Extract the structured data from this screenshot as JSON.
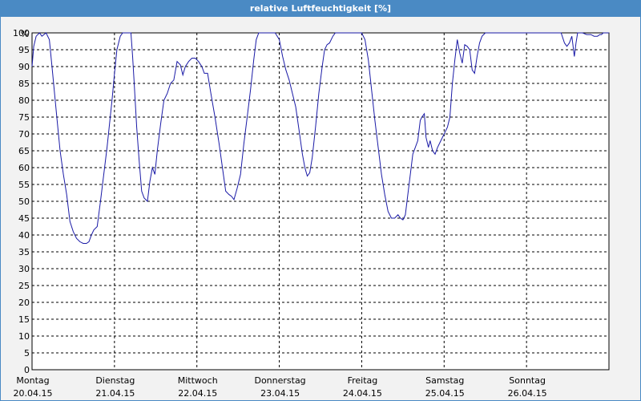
{
  "window": {
    "title": "relative Luftfeuchtigkeit [%]"
  },
  "colors": {
    "title_bar": "#4a8ac4",
    "line": "#1a1aa6",
    "grid": "#000000",
    "plot_bg": "#ffffff"
  },
  "chart_data": {
    "type": "line",
    "title": "relative Luftfeuchtigkeit [%]",
    "ylabel": "%",
    "ylim": [
      0,
      100
    ],
    "ystep": 5,
    "grid": true,
    "x_days": [
      {
        "day": "Montag",
        "date": "20.04.15"
      },
      {
        "day": "Dienstag",
        "date": "21.04.15"
      },
      {
        "day": "Mittwoch",
        "date": "22.04.15"
      },
      {
        "day": "Donnerstag",
        "date": "23.04.15"
      },
      {
        "day": "Freitag",
        "date": "24.04.15"
      },
      {
        "day": "Samstag",
        "date": "25.04.15"
      },
      {
        "day": "Sonntag",
        "date": "26.04.15"
      }
    ],
    "xlim_days": [
      0,
      7
    ],
    "series": [
      {
        "values": [
          [
            0.0,
            90
          ],
          [
            0.02,
            96
          ],
          [
            0.05,
            99
          ],
          [
            0.09,
            100
          ],
          [
            0.12,
            99
          ],
          [
            0.17,
            100
          ],
          [
            0.21,
            98
          ],
          [
            0.25,
            88
          ],
          [
            0.3,
            75
          ],
          [
            0.34,
            65
          ],
          [
            0.38,
            58
          ],
          [
            0.42,
            52
          ],
          [
            0.46,
            44
          ],
          [
            0.5,
            41
          ],
          [
            0.54,
            39
          ],
          [
            0.58,
            38
          ],
          [
            0.62,
            37.5
          ],
          [
            0.66,
            37.5
          ],
          [
            0.69,
            38
          ],
          [
            0.72,
            40
          ],
          [
            0.75,
            41.5
          ],
          [
            0.79,
            42.5
          ],
          [
            0.83,
            50
          ],
          [
            0.87,
            58
          ],
          [
            0.91,
            66
          ],
          [
            0.94,
            73
          ],
          [
            0.97,
            80
          ],
          [
            1.0,
            88
          ],
          [
            1.03,
            95
          ],
          [
            1.07,
            99
          ],
          [
            1.1,
            100
          ],
          [
            1.16,
            100
          ],
          [
            1.2,
            100
          ],
          [
            1.22,
            93
          ],
          [
            1.24,
            85
          ],
          [
            1.27,
            72
          ],
          [
            1.3,
            62
          ],
          [
            1.33,
            53
          ],
          [
            1.36,
            51
          ],
          [
            1.4,
            50
          ],
          [
            1.43,
            56
          ],
          [
            1.46,
            60
          ],
          [
            1.49,
            58
          ],
          [
            1.52,
            65
          ],
          [
            1.56,
            73
          ],
          [
            1.6,
            80
          ],
          [
            1.64,
            82
          ],
          [
            1.68,
            85
          ],
          [
            1.72,
            86
          ],
          [
            1.76,
            91.5
          ],
          [
            1.8,
            90.5
          ],
          [
            1.83,
            87.5
          ],
          [
            1.86,
            90
          ],
          [
            1.9,
            91.5
          ],
          [
            1.94,
            92.5
          ],
          [
            1.98,
            92.5
          ],
          [
            2.02,
            91.5
          ],
          [
            2.06,
            90
          ],
          [
            2.09,
            88
          ],
          [
            2.13,
            88
          ],
          [
            2.17,
            82
          ],
          [
            2.22,
            75
          ],
          [
            2.27,
            67
          ],
          [
            2.31,
            60
          ],
          [
            2.35,
            53
          ],
          [
            2.39,
            52
          ],
          [
            2.42,
            51.5
          ],
          [
            2.45,
            50.5
          ],
          [
            2.49,
            54
          ],
          [
            2.53,
            58
          ],
          [
            2.57,
            67
          ],
          [
            2.61,
            75
          ],
          [
            2.65,
            83
          ],
          [
            2.69,
            92
          ],
          [
            2.72,
            98
          ],
          [
            2.75,
            100
          ],
          [
            2.85,
            100
          ],
          [
            2.95,
            100
          ],
          [
            3.0,
            98
          ],
          [
            3.04,
            93
          ],
          [
            3.08,
            89
          ],
          [
            3.12,
            86
          ],
          [
            3.16,
            82
          ],
          [
            3.2,
            78
          ],
          [
            3.24,
            71
          ],
          [
            3.28,
            64
          ],
          [
            3.31,
            60
          ],
          [
            3.34,
            57.5
          ],
          [
            3.37,
            58.5
          ],
          [
            3.4,
            63
          ],
          [
            3.44,
            72
          ],
          [
            3.48,
            82
          ],
          [
            3.52,
            90
          ],
          [
            3.55,
            95
          ],
          [
            3.58,
            96.5
          ],
          [
            3.61,
            97
          ],
          [
            3.65,
            99
          ],
          [
            3.68,
            100
          ],
          [
            3.75,
            100
          ],
          [
            3.85,
            100
          ],
          [
            3.95,
            100
          ],
          [
            4.0,
            100
          ],
          [
            4.04,
            98
          ],
          [
            4.08,
            92
          ],
          [
            4.12,
            83
          ],
          [
            4.16,
            74
          ],
          [
            4.2,
            66
          ],
          [
            4.24,
            58
          ],
          [
            4.28,
            52
          ],
          [
            4.32,
            47
          ],
          [
            4.36,
            45
          ],
          [
            4.4,
            45
          ],
          [
            4.44,
            46
          ],
          [
            4.47,
            45
          ],
          [
            4.5,
            44.5
          ],
          [
            4.53,
            46
          ],
          [
            4.56,
            52
          ],
          [
            4.59,
            58
          ],
          [
            4.62,
            64
          ],
          [
            4.65,
            66
          ],
          [
            4.68,
            68
          ],
          [
            4.71,
            74
          ],
          [
            4.73,
            75
          ],
          [
            4.76,
            76
          ],
          [
            4.78,
            69
          ],
          [
            4.81,
            66
          ],
          [
            4.83,
            68
          ],
          [
            4.86,
            65
          ],
          [
            4.89,
            64
          ],
          [
            4.92,
            66
          ],
          [
            4.96,
            68
          ],
          [
            5.0,
            70
          ],
          [
            5.04,
            72
          ],
          [
            5.07,
            75
          ],
          [
            5.1,
            85
          ],
          [
            5.13,
            92
          ],
          [
            5.16,
            98
          ],
          [
            5.19,
            94
          ],
          [
            5.22,
            91
          ],
          [
            5.25,
            96.5
          ],
          [
            5.28,
            96
          ],
          [
            5.31,
            95
          ],
          [
            5.34,
            89
          ],
          [
            5.37,
            88
          ],
          [
            5.4,
            93
          ],
          [
            5.43,
            97
          ],
          [
            5.46,
            99
          ],
          [
            5.5,
            100
          ],
          [
            5.7,
            100
          ],
          [
            5.9,
            100
          ],
          [
            6.1,
            100
          ],
          [
            6.3,
            100
          ],
          [
            6.42,
            100
          ],
          [
            6.46,
            97
          ],
          [
            6.49,
            96
          ],
          [
            6.52,
            97
          ],
          [
            6.55,
            99
          ],
          [
            6.58,
            93
          ],
          [
            6.6,
            97
          ],
          [
            6.62,
            100
          ],
          [
            6.68,
            100
          ],
          [
            6.73,
            99.5
          ],
          [
            6.78,
            99.5
          ],
          [
            6.82,
            99
          ],
          [
            6.86,
            99
          ],
          [
            6.89,
            99.5
          ],
          [
            6.91,
            99.5
          ],
          [
            6.93,
            100
          ],
          [
            7.0,
            100
          ]
        ]
      }
    ]
  }
}
